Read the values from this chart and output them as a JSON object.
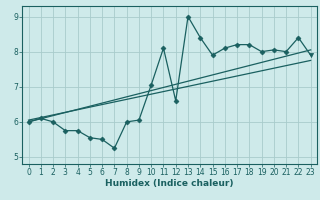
{
  "xlabel": "Humidex (Indice chaleur)",
  "ylabel": "",
  "xlim": [
    -0.5,
    23.5
  ],
  "ylim": [
    4.8,
    9.3
  ],
  "yticks": [
    5,
    6,
    7,
    8,
    9
  ],
  "xticks": [
    0,
    1,
    2,
    3,
    4,
    5,
    6,
    7,
    8,
    9,
    10,
    11,
    12,
    13,
    14,
    15,
    16,
    17,
    18,
    19,
    20,
    21,
    22,
    23
  ],
  "bg_color": "#ceeaea",
  "line_color": "#1a6060",
  "grid_color": "#a8cccc",
  "data_x": [
    0,
    1,
    2,
    3,
    4,
    5,
    6,
    7,
    8,
    9,
    10,
    11,
    12,
    13,
    14,
    15,
    16,
    17,
    18,
    19,
    20,
    21,
    22,
    23
  ],
  "data_y": [
    6.0,
    6.1,
    6.0,
    5.75,
    5.75,
    5.55,
    5.5,
    5.25,
    6.0,
    6.05,
    7.05,
    8.1,
    6.6,
    9.0,
    8.4,
    7.9,
    8.1,
    8.2,
    8.2,
    8.0,
    8.05,
    8.0,
    8.4,
    7.9
  ],
  "trend_x": [
    0,
    23
  ],
  "trend_y": [
    6.0,
    8.05
  ],
  "trend2_x": [
    0,
    23
  ],
  "trend2_y": [
    6.05,
    7.75
  ],
  "down_marker_indices": [
    23
  ],
  "marker_size": 3,
  "lw": 0.9
}
